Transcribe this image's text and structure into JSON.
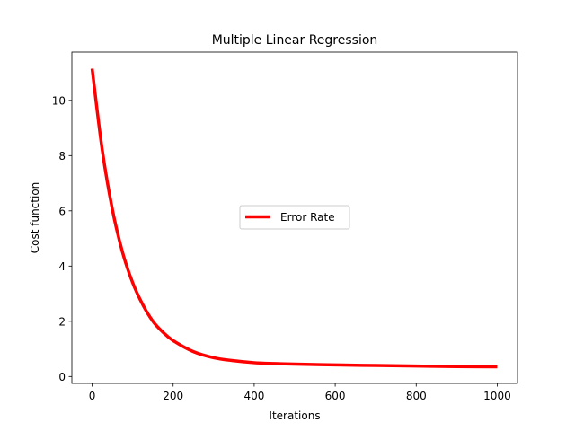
{
  "chart_data": {
    "type": "line",
    "title": "Multiple Linear Regression",
    "xlabel": "Iterations",
    "ylabel": "Cost function",
    "xlim": [
      -50,
      1050
    ],
    "ylim": [
      -0.25,
      11.75
    ],
    "xticks": [
      0,
      200,
      400,
      600,
      800,
      1000
    ],
    "yticks": [
      0,
      2,
      4,
      6,
      8,
      10
    ],
    "grid": false,
    "legend": {
      "position": "center",
      "entries": [
        "Error Rate"
      ]
    },
    "series": [
      {
        "name": "Error Rate",
        "color": "#ff0000",
        "x": [
          0,
          25,
          50,
          75,
          100,
          125,
          150,
          175,
          200,
          250,
          300,
          350,
          400,
          450,
          500,
          600,
          700,
          800,
          900,
          1000
        ],
        "y": [
          11.15,
          8.2,
          6.05,
          4.5,
          3.4,
          2.6,
          2.0,
          1.6,
          1.3,
          0.9,
          0.68,
          0.57,
          0.5,
          0.47,
          0.45,
          0.42,
          0.4,
          0.38,
          0.36,
          0.35
        ]
      }
    ]
  }
}
